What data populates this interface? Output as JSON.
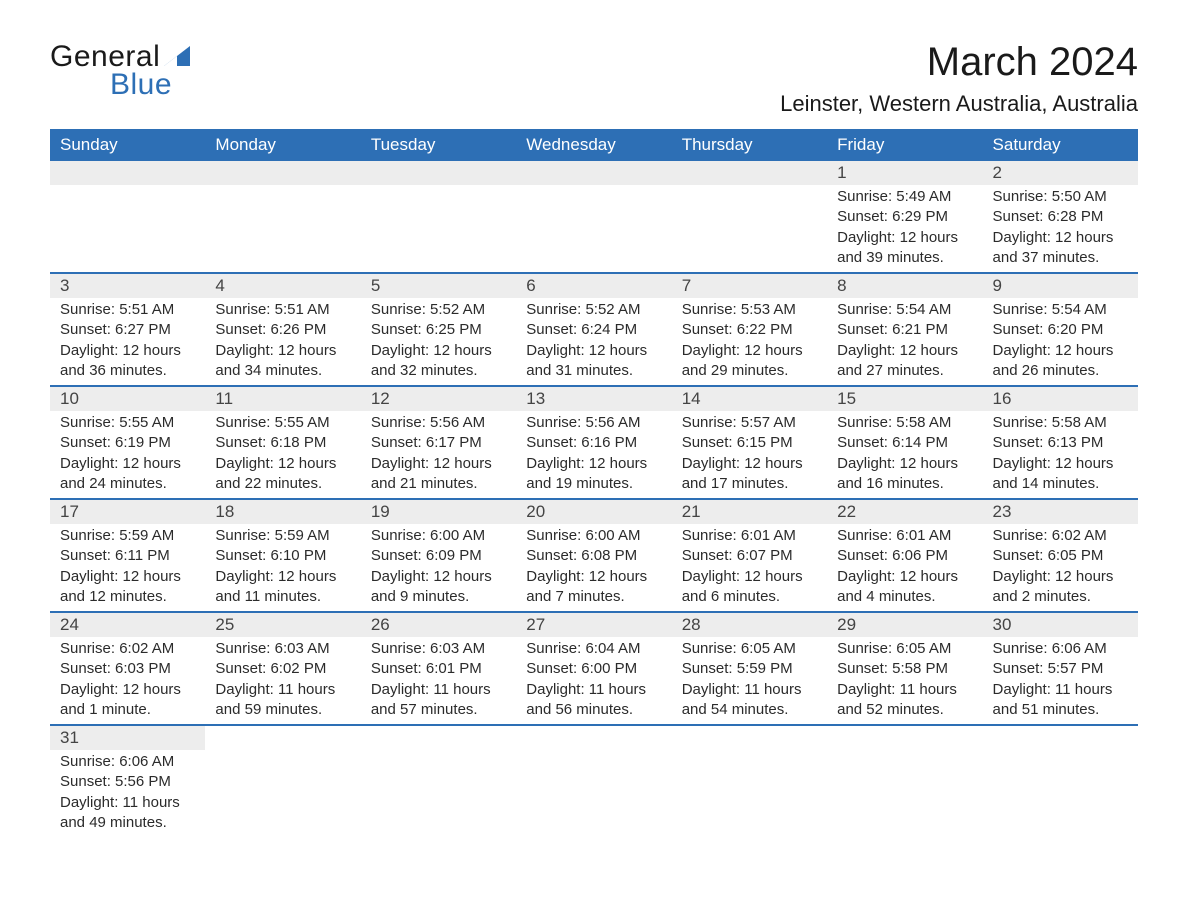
{
  "brand": {
    "part1": "General",
    "part2": "Blue",
    "triangle_color": "#2d6fb5"
  },
  "title": "March 2024",
  "location": "Leinster, Western Australia, Australia",
  "colors": {
    "header_bg": "#2d6fb5",
    "header_text": "#ffffff",
    "daynum_bg": "#ededed",
    "text": "#2b2b2b",
    "rule": "#2d6fb5"
  },
  "fonts": {
    "title_size_pt": 30,
    "location_size_pt": 17,
    "header_size_pt": 13,
    "body_size_pt": 11
  },
  "weekdays": [
    "Sunday",
    "Monday",
    "Tuesday",
    "Wednesday",
    "Thursday",
    "Friday",
    "Saturday"
  ],
  "weeks": [
    [
      null,
      null,
      null,
      null,
      null,
      {
        "d": "1",
        "sr": "Sunrise: 5:49 AM",
        "ss": "Sunset: 6:29 PM",
        "dl1": "Daylight: 12 hours",
        "dl2": "and 39 minutes."
      },
      {
        "d": "2",
        "sr": "Sunrise: 5:50 AM",
        "ss": "Sunset: 6:28 PM",
        "dl1": "Daylight: 12 hours",
        "dl2": "and 37 minutes."
      }
    ],
    [
      {
        "d": "3",
        "sr": "Sunrise: 5:51 AM",
        "ss": "Sunset: 6:27 PM",
        "dl1": "Daylight: 12 hours",
        "dl2": "and 36 minutes."
      },
      {
        "d": "4",
        "sr": "Sunrise: 5:51 AM",
        "ss": "Sunset: 6:26 PM",
        "dl1": "Daylight: 12 hours",
        "dl2": "and 34 minutes."
      },
      {
        "d": "5",
        "sr": "Sunrise: 5:52 AM",
        "ss": "Sunset: 6:25 PM",
        "dl1": "Daylight: 12 hours",
        "dl2": "and 32 minutes."
      },
      {
        "d": "6",
        "sr": "Sunrise: 5:52 AM",
        "ss": "Sunset: 6:24 PM",
        "dl1": "Daylight: 12 hours",
        "dl2": "and 31 minutes."
      },
      {
        "d": "7",
        "sr": "Sunrise: 5:53 AM",
        "ss": "Sunset: 6:22 PM",
        "dl1": "Daylight: 12 hours",
        "dl2": "and 29 minutes."
      },
      {
        "d": "8",
        "sr": "Sunrise: 5:54 AM",
        "ss": "Sunset: 6:21 PM",
        "dl1": "Daylight: 12 hours",
        "dl2": "and 27 minutes."
      },
      {
        "d": "9",
        "sr": "Sunrise: 5:54 AM",
        "ss": "Sunset: 6:20 PM",
        "dl1": "Daylight: 12 hours",
        "dl2": "and 26 minutes."
      }
    ],
    [
      {
        "d": "10",
        "sr": "Sunrise: 5:55 AM",
        "ss": "Sunset: 6:19 PM",
        "dl1": "Daylight: 12 hours",
        "dl2": "and 24 minutes."
      },
      {
        "d": "11",
        "sr": "Sunrise: 5:55 AM",
        "ss": "Sunset: 6:18 PM",
        "dl1": "Daylight: 12 hours",
        "dl2": "and 22 minutes."
      },
      {
        "d": "12",
        "sr": "Sunrise: 5:56 AM",
        "ss": "Sunset: 6:17 PM",
        "dl1": "Daylight: 12 hours",
        "dl2": "and 21 minutes."
      },
      {
        "d": "13",
        "sr": "Sunrise: 5:56 AM",
        "ss": "Sunset: 6:16 PM",
        "dl1": "Daylight: 12 hours",
        "dl2": "and 19 minutes."
      },
      {
        "d": "14",
        "sr": "Sunrise: 5:57 AM",
        "ss": "Sunset: 6:15 PM",
        "dl1": "Daylight: 12 hours",
        "dl2": "and 17 minutes."
      },
      {
        "d": "15",
        "sr": "Sunrise: 5:58 AM",
        "ss": "Sunset: 6:14 PM",
        "dl1": "Daylight: 12 hours",
        "dl2": "and 16 minutes."
      },
      {
        "d": "16",
        "sr": "Sunrise: 5:58 AM",
        "ss": "Sunset: 6:13 PM",
        "dl1": "Daylight: 12 hours",
        "dl2": "and 14 minutes."
      }
    ],
    [
      {
        "d": "17",
        "sr": "Sunrise: 5:59 AM",
        "ss": "Sunset: 6:11 PM",
        "dl1": "Daylight: 12 hours",
        "dl2": "and 12 minutes."
      },
      {
        "d": "18",
        "sr": "Sunrise: 5:59 AM",
        "ss": "Sunset: 6:10 PM",
        "dl1": "Daylight: 12 hours",
        "dl2": "and 11 minutes."
      },
      {
        "d": "19",
        "sr": "Sunrise: 6:00 AM",
        "ss": "Sunset: 6:09 PM",
        "dl1": "Daylight: 12 hours",
        "dl2": "and 9 minutes."
      },
      {
        "d": "20",
        "sr": "Sunrise: 6:00 AM",
        "ss": "Sunset: 6:08 PM",
        "dl1": "Daylight: 12 hours",
        "dl2": "and 7 minutes."
      },
      {
        "d": "21",
        "sr": "Sunrise: 6:01 AM",
        "ss": "Sunset: 6:07 PM",
        "dl1": "Daylight: 12 hours",
        "dl2": "and 6 minutes."
      },
      {
        "d": "22",
        "sr": "Sunrise: 6:01 AM",
        "ss": "Sunset: 6:06 PM",
        "dl1": "Daylight: 12 hours",
        "dl2": "and 4 minutes."
      },
      {
        "d": "23",
        "sr": "Sunrise: 6:02 AM",
        "ss": "Sunset: 6:05 PM",
        "dl1": "Daylight: 12 hours",
        "dl2": "and 2 minutes."
      }
    ],
    [
      {
        "d": "24",
        "sr": "Sunrise: 6:02 AM",
        "ss": "Sunset: 6:03 PM",
        "dl1": "Daylight: 12 hours",
        "dl2": "and 1 minute."
      },
      {
        "d": "25",
        "sr": "Sunrise: 6:03 AM",
        "ss": "Sunset: 6:02 PM",
        "dl1": "Daylight: 11 hours",
        "dl2": "and 59 minutes."
      },
      {
        "d": "26",
        "sr": "Sunrise: 6:03 AM",
        "ss": "Sunset: 6:01 PM",
        "dl1": "Daylight: 11 hours",
        "dl2": "and 57 minutes."
      },
      {
        "d": "27",
        "sr": "Sunrise: 6:04 AM",
        "ss": "Sunset: 6:00 PM",
        "dl1": "Daylight: 11 hours",
        "dl2": "and 56 minutes."
      },
      {
        "d": "28",
        "sr": "Sunrise: 6:05 AM",
        "ss": "Sunset: 5:59 PM",
        "dl1": "Daylight: 11 hours",
        "dl2": "and 54 minutes."
      },
      {
        "d": "29",
        "sr": "Sunrise: 6:05 AM",
        "ss": "Sunset: 5:58 PM",
        "dl1": "Daylight: 11 hours",
        "dl2": "and 52 minutes."
      },
      {
        "d": "30",
        "sr": "Sunrise: 6:06 AM",
        "ss": "Sunset: 5:57 PM",
        "dl1": "Daylight: 11 hours",
        "dl2": "and 51 minutes."
      }
    ],
    [
      {
        "d": "31",
        "sr": "Sunrise: 6:06 AM",
        "ss": "Sunset: 5:56 PM",
        "dl1": "Daylight: 11 hours",
        "dl2": "and 49 minutes."
      },
      null,
      null,
      null,
      null,
      null,
      null
    ]
  ]
}
